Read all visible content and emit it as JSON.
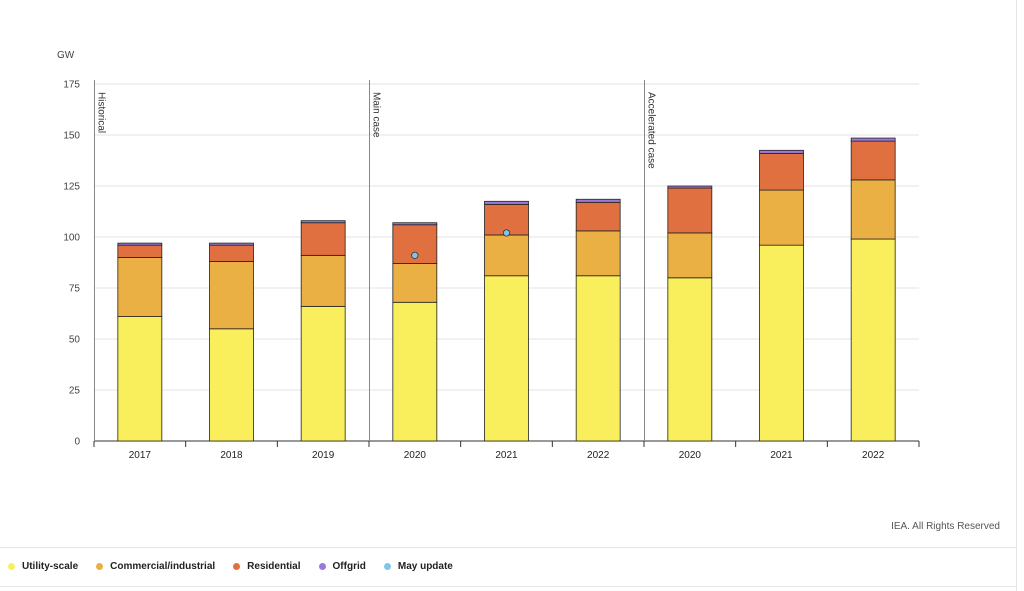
{
  "chart_data": {
    "type": "bar",
    "stacked": true,
    "ylabel": "GW",
    "ylim": [
      0,
      175
    ],
    "yticks": [
      0,
      25,
      50,
      75,
      100,
      125,
      150,
      175
    ],
    "grid": true,
    "categories": [
      "2017",
      "2018",
      "2019",
      "2020",
      "2021",
      "2022",
      "2020",
      "2021",
      "2022"
    ],
    "groups": [
      {
        "label": "Historical",
        "start": 0
      },
      {
        "label": "Main case",
        "start": 3
      },
      {
        "label": "Accelerated case",
        "start": 6
      }
    ],
    "series": [
      {
        "name": "Utility-scale",
        "color": "#f9ef5c",
        "values": [
          61,
          55,
          66,
          68,
          81,
          81,
          80,
          96,
          99
        ]
      },
      {
        "name": "Commercial/industrial",
        "color": "#eab043",
        "values": [
          29,
          33,
          25,
          19,
          20,
          22,
          22,
          27,
          29
        ]
      },
      {
        "name": "Residential",
        "color": "#e0703f",
        "values": [
          6,
          8,
          16,
          19,
          15,
          14,
          22,
          18,
          19
        ]
      },
      {
        "name": "Offgrid",
        "color": "#9b79d8",
        "values": [
          1,
          1,
          1,
          1,
          1.5,
          1.5,
          1,
          1.5,
          1.5
        ]
      }
    ],
    "markers": {
      "name": "May update",
      "color": "#7fc6ea",
      "points": [
        {
          "category_index": 3,
          "value": 91
        },
        {
          "category_index": 4,
          "value": 102
        }
      ]
    },
    "legend_position": "bottom-left",
    "credit": "IEA. All Rights Reserved"
  }
}
